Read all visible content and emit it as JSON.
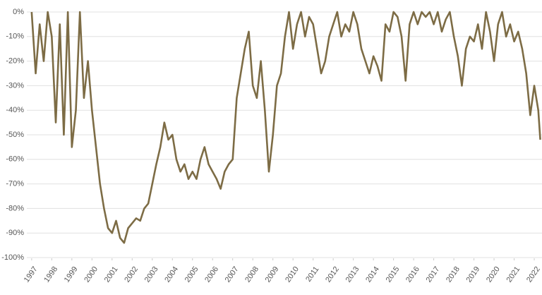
{
  "chart_data": {
    "type": "line",
    "x": [
      1997,
      1997.2,
      1997.4,
      1997.6,
      1997.8,
      1998,
      1998.2,
      1998.4,
      1998.6,
      1998.8,
      1999,
      1999.2,
      1999.4,
      1999.6,
      1999.8,
      2000,
      2000.2,
      2000.4,
      2000.6,
      2000.8,
      2001,
      2001.2,
      2001.4,
      2001.6,
      2001.8,
      2002,
      2002.2,
      2002.4,
      2002.6,
      2002.8,
      2003,
      2003.2,
      2003.4,
      2003.6,
      2003.8,
      2004,
      2004.2,
      2004.4,
      2004.6,
      2004.8,
      2005,
      2005.2,
      2005.4,
      2005.6,
      2005.8,
      2006,
      2006.2,
      2006.4,
      2006.6,
      2006.8,
      2007,
      2007.2,
      2007.4,
      2007.6,
      2007.8,
      2008,
      2008.2,
      2008.4,
      2008.6,
      2008.8,
      2009,
      2009.2,
      2009.4,
      2009.6,
      2009.8,
      2010,
      2010.2,
      2010.4,
      2010.6,
      2010.8,
      2011,
      2011.2,
      2011.4,
      2011.6,
      2011.8,
      2012,
      2012.2,
      2012.4,
      2012.6,
      2012.8,
      2013,
      2013.2,
      2013.4,
      2013.6,
      2013.8,
      2014,
      2014.2,
      2014.4,
      2014.6,
      2014.8,
      2015,
      2015.2,
      2015.4,
      2015.6,
      2015.8,
      2016,
      2016.2,
      2016.4,
      2016.6,
      2016.8,
      2017,
      2017.2,
      2017.4,
      2017.6,
      2017.8,
      2018,
      2018.2,
      2018.4,
      2018.6,
      2018.8,
      2019,
      2019.2,
      2019.4,
      2019.6,
      2019.8,
      2020,
      2020.2,
      2020.4,
      2020.6,
      2020.8,
      2021,
      2021.2,
      2021.4,
      2021.6,
      2021.8,
      2022,
      2022.2,
      2022.3
    ],
    "values": [
      0,
      -25,
      -5,
      -20,
      0,
      -10,
      -45,
      -5,
      -50,
      0,
      -55,
      -40,
      0,
      -35,
      -20,
      -40,
      -55,
      -70,
      -80,
      -88,
      -90,
      -85,
      -92,
      -94,
      -88,
      -86,
      -84,
      -85,
      -80,
      -78,
      -70,
      -62,
      -55,
      -45,
      -52,
      -50,
      -60,
      -65,
      -62,
      -68,
      -65,
      -68,
      -60,
      -55,
      -62,
      -65,
      -68,
      -72,
      -65,
      -62,
      -60,
      -35,
      -25,
      -15,
      -8,
      -30,
      -35,
      -20,
      -40,
      -65,
      -50,
      -30,
      -25,
      -10,
      0,
      -15,
      -5,
      0,
      -10,
      -2,
      -5,
      -15,
      -25,
      -20,
      -10,
      -5,
      0,
      -10,
      -5,
      -8,
      0,
      -5,
      -15,
      -20,
      -25,
      -18,
      -22,
      -28,
      -5,
      -8,
      0,
      -2,
      -10,
      -28,
      -5,
      0,
      -5,
      0,
      -2,
      0,
      -5,
      0,
      -8,
      -3,
      0,
      -10,
      -18,
      -30,
      -15,
      -10,
      -12,
      -5,
      -15,
      0,
      -8,
      -20,
      -5,
      0,
      -10,
      -5,
      -12,
      -8,
      -15,
      -25,
      -42,
      -30,
      -40,
      -52
    ],
    "color": "#7d6c45",
    "xlim": [
      1996.9,
      2022.35
    ],
    "xticks": [
      1997,
      1998,
      1999,
      2000,
      2001,
      2002,
      2003,
      2004,
      2005,
      2006,
      2007,
      2008,
      2009,
      2010,
      2011,
      2012,
      2013,
      2014,
      2015,
      2016,
      2017,
      2018,
      2019,
      2020,
      2021,
      2022
    ],
    "ylim": [
      -100,
      0
    ],
    "yticks": [
      {
        "value": 0,
        "label": "0%"
      },
      {
        "value": -10,
        "label": "-10%"
      },
      {
        "value": -20,
        "label": "-20%"
      },
      {
        "value": -30,
        "label": "-30%"
      },
      {
        "value": -40,
        "label": "-40%"
      },
      {
        "value": -50,
        "label": "-50%"
      },
      {
        "value": -60,
        "label": "-60%"
      },
      {
        "value": -70,
        "label": "-70%"
      },
      {
        "value": -80,
        "label": "-80%"
      },
      {
        "value": -90,
        "label": "-90%"
      },
      {
        "value": -100,
        "label": "-100%"
      }
    ],
    "grid": true
  }
}
